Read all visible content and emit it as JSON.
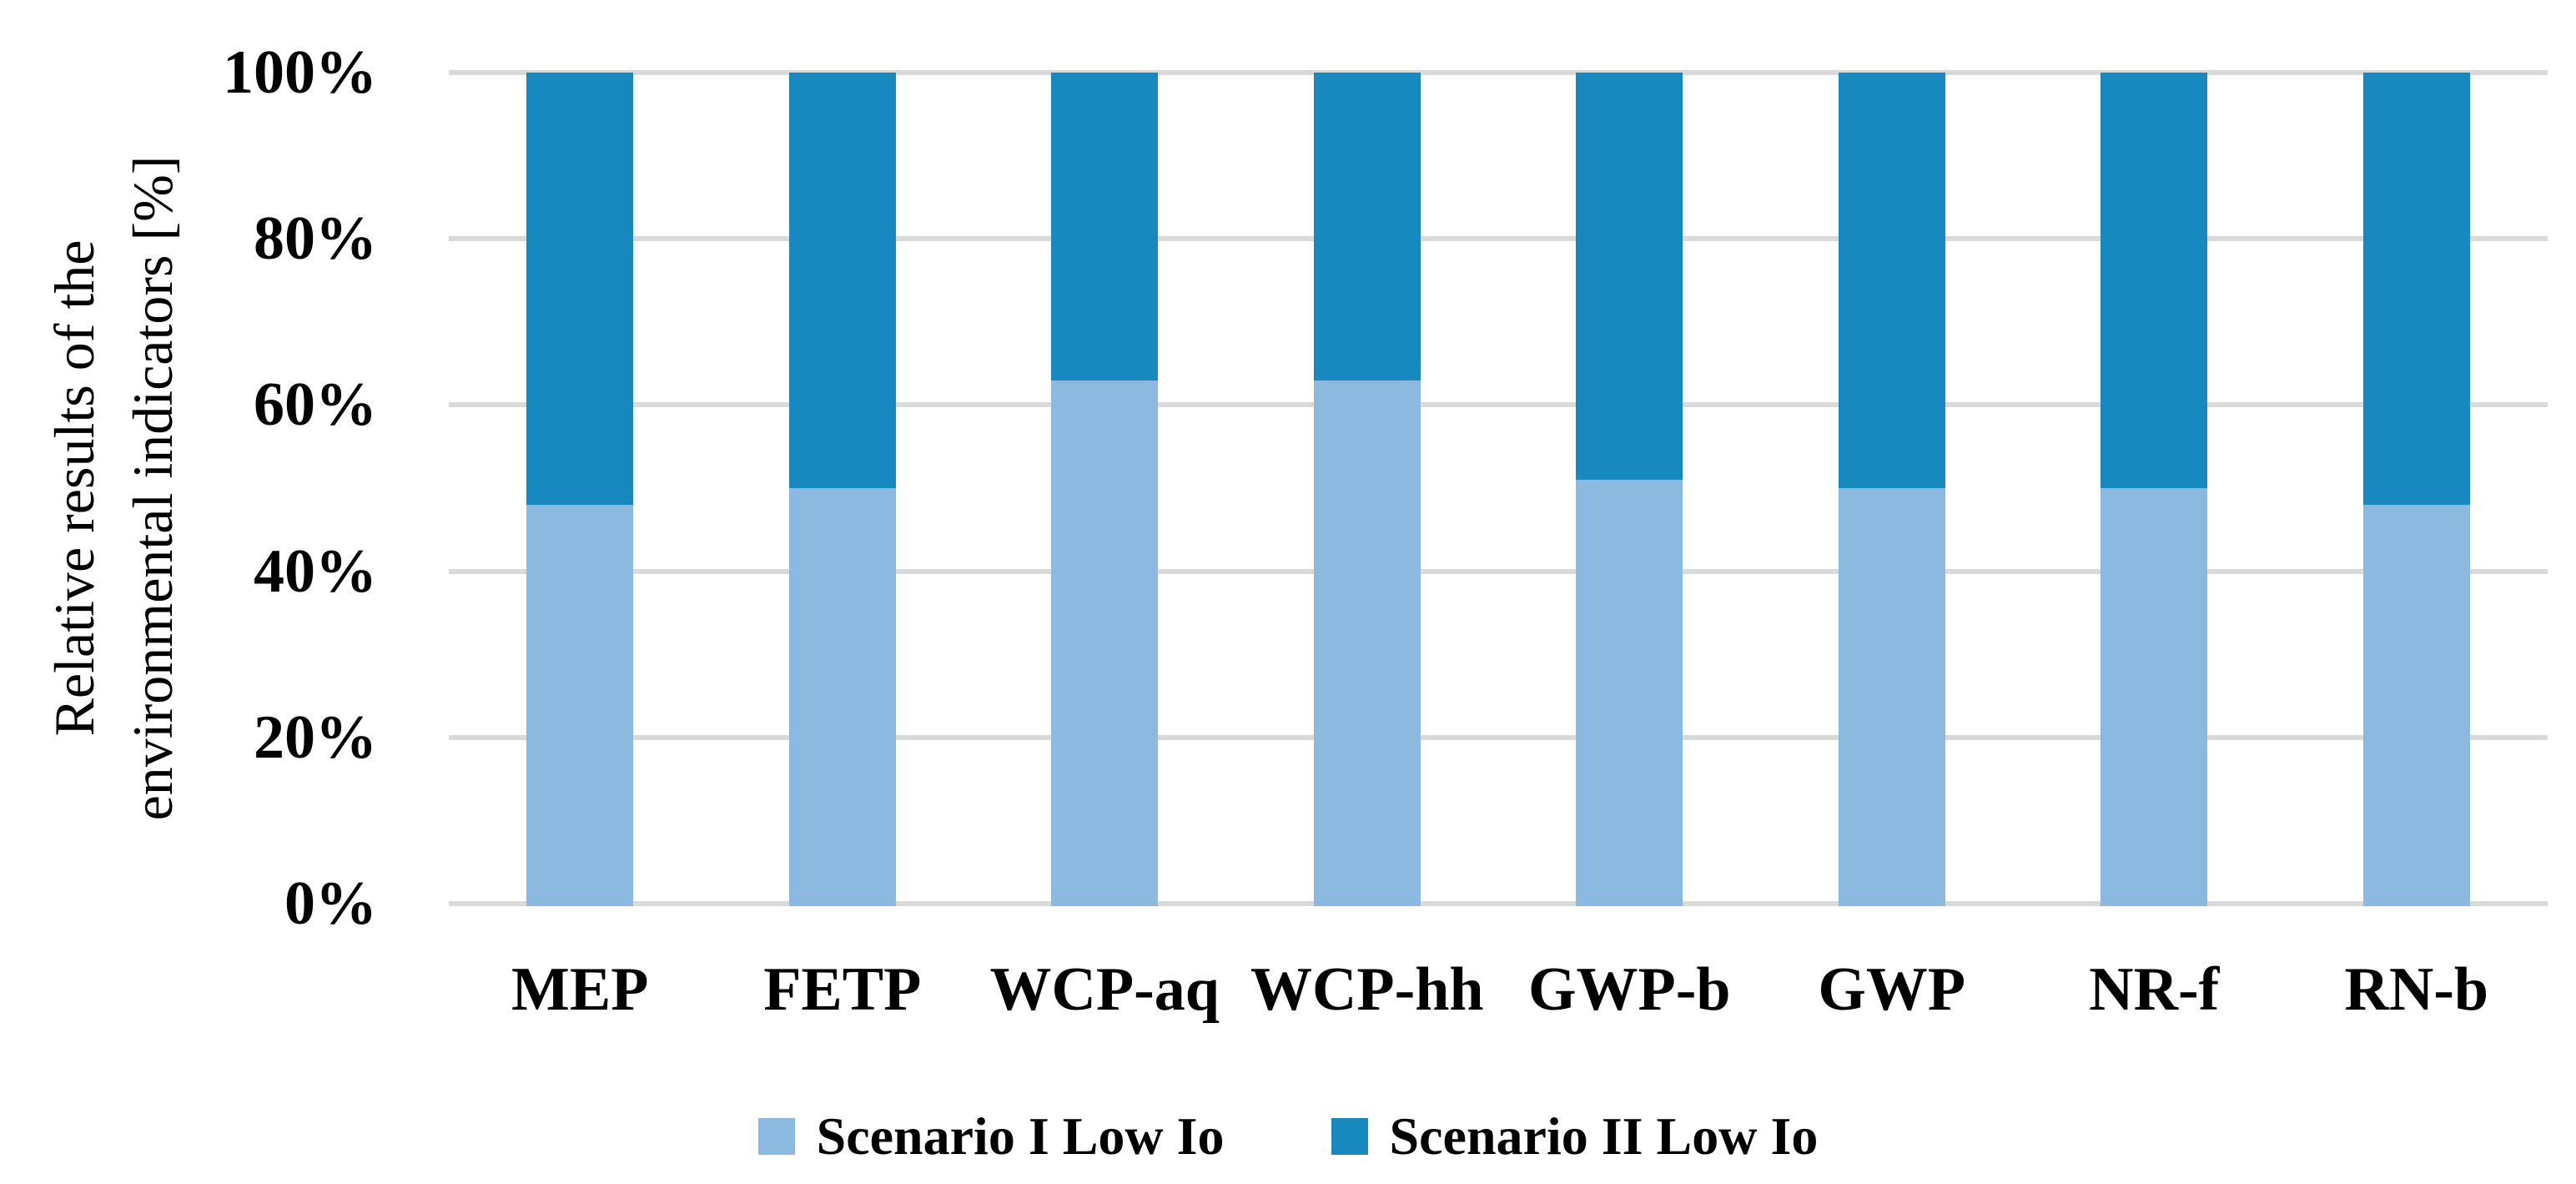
{
  "chart_data": {
    "type": "bar",
    "variant": "100-percent-stacked-column",
    "title": "",
    "ylabel_lines": [
      "Relative results of the",
      "environmental indicators [%]"
    ],
    "categories": [
      "MEP",
      "FETP",
      "WCP-aq",
      "WCP-hh",
      "GWP-b",
      "GWP",
      "NR-f",
      "RN-b"
    ],
    "series": [
      {
        "name": "Scenario I Low Io",
        "color": "#8CB9E0",
        "values": [
          48,
          50,
          63,
          63,
          51,
          50,
          50,
          48
        ]
      },
      {
        "name": "Scenario II Low Io",
        "color": "#1789BF",
        "values": [
          52,
          50,
          37,
          37,
          49,
          50,
          50,
          52
        ]
      }
    ],
    "yticks": [
      {
        "value": 0,
        "label": "0%"
      },
      {
        "value": 20,
        "label": "20%"
      },
      {
        "value": 40,
        "label": "40%"
      },
      {
        "value": 60,
        "label": "60%"
      },
      {
        "value": 80,
        "label": "80%"
      },
      {
        "value": 100,
        "label": "100%"
      }
    ],
    "ylim": [
      0,
      100
    ],
    "grid": true,
    "gridline_color": "#D9D9D9",
    "background_color": "#FFFFFF",
    "legend_position": "bottom"
  }
}
